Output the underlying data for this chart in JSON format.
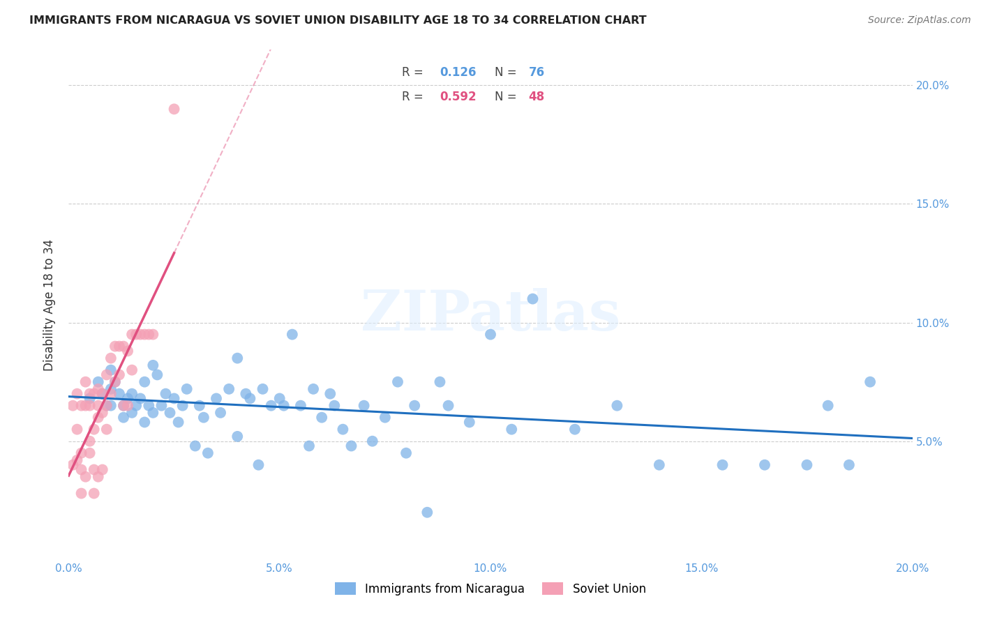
{
  "title": "IMMIGRANTS FROM NICARAGUA VS SOVIET UNION DISABILITY AGE 18 TO 34 CORRELATION CHART",
  "source": "Source: ZipAtlas.com",
  "ylabel": "Disability Age 18 to 34",
  "xlim": [
    0.0,
    0.2
  ],
  "ylim": [
    0.0,
    0.215
  ],
  "xticks": [
    0.0,
    0.05,
    0.1,
    0.15,
    0.2
  ],
  "yticks": [
    0.05,
    0.1,
    0.15,
    0.2
  ],
  "xtick_labels": [
    "0.0%",
    "5.0%",
    "10.0%",
    "15.0%",
    "20.0%"
  ],
  "ytick_labels": [
    "5.0%",
    "10.0%",
    "15.0%",
    "20.0%"
  ],
  "nicaragua_color": "#7FB3E8",
  "soviet_color": "#F4A0B5",
  "nicaragua_line_color": "#1F6FBF",
  "soviet_line_color": "#E05080",
  "watermark": "ZIPatlas",
  "nicaragua_R": "0.126",
  "nicaragua_N": "76",
  "soviet_R": "0.592",
  "soviet_N": "48",
  "nicaragua_x": [
    0.005,
    0.007,
    0.008,
    0.009,
    0.01,
    0.01,
    0.01,
    0.011,
    0.012,
    0.013,
    0.013,
    0.014,
    0.015,
    0.015,
    0.016,
    0.017,
    0.018,
    0.018,
    0.019,
    0.02,
    0.02,
    0.021,
    0.022,
    0.023,
    0.024,
    0.025,
    0.026,
    0.027,
    0.028,
    0.03,
    0.031,
    0.032,
    0.033,
    0.035,
    0.036,
    0.038,
    0.04,
    0.04,
    0.042,
    0.043,
    0.045,
    0.046,
    0.048,
    0.05,
    0.051,
    0.053,
    0.055,
    0.057,
    0.058,
    0.06,
    0.062,
    0.063,
    0.065,
    0.067,
    0.07,
    0.072,
    0.075,
    0.078,
    0.08,
    0.082,
    0.085,
    0.088,
    0.09,
    0.095,
    0.1,
    0.105,
    0.11,
    0.12,
    0.13,
    0.14,
    0.155,
    0.165,
    0.175,
    0.18,
    0.185,
    0.19
  ],
  "nicaragua_y": [
    0.068,
    0.075,
    0.07,
    0.065,
    0.08,
    0.072,
    0.065,
    0.075,
    0.07,
    0.065,
    0.06,
    0.068,
    0.062,
    0.07,
    0.065,
    0.068,
    0.058,
    0.075,
    0.065,
    0.082,
    0.062,
    0.078,
    0.065,
    0.07,
    0.062,
    0.068,
    0.058,
    0.065,
    0.072,
    0.048,
    0.065,
    0.06,
    0.045,
    0.068,
    0.062,
    0.072,
    0.052,
    0.085,
    0.07,
    0.068,
    0.04,
    0.072,
    0.065,
    0.068,
    0.065,
    0.095,
    0.065,
    0.048,
    0.072,
    0.06,
    0.07,
    0.065,
    0.055,
    0.048,
    0.065,
    0.05,
    0.06,
    0.075,
    0.045,
    0.065,
    0.02,
    0.075,
    0.065,
    0.058,
    0.095,
    0.055,
    0.11,
    0.055,
    0.065,
    0.04,
    0.04,
    0.04,
    0.04,
    0.065,
    0.04,
    0.075
  ],
  "soviet_x": [
    0.001,
    0.001,
    0.002,
    0.002,
    0.002,
    0.003,
    0.003,
    0.003,
    0.003,
    0.004,
    0.004,
    0.004,
    0.005,
    0.005,
    0.005,
    0.005,
    0.006,
    0.006,
    0.006,
    0.006,
    0.007,
    0.007,
    0.007,
    0.007,
    0.008,
    0.008,
    0.008,
    0.009,
    0.009,
    0.009,
    0.01,
    0.01,
    0.011,
    0.011,
    0.012,
    0.012,
    0.013,
    0.013,
    0.014,
    0.014,
    0.015,
    0.015,
    0.016,
    0.017,
    0.018,
    0.019,
    0.02,
    0.025
  ],
  "soviet_y": [
    0.065,
    0.04,
    0.055,
    0.07,
    0.042,
    0.065,
    0.045,
    0.028,
    0.038,
    0.075,
    0.065,
    0.035,
    0.065,
    0.05,
    0.07,
    0.045,
    0.07,
    0.055,
    0.028,
    0.038,
    0.072,
    0.065,
    0.06,
    0.035,
    0.07,
    0.062,
    0.038,
    0.078,
    0.065,
    0.055,
    0.085,
    0.07,
    0.09,
    0.075,
    0.09,
    0.078,
    0.09,
    0.065,
    0.088,
    0.065,
    0.095,
    0.08,
    0.095,
    0.095,
    0.095,
    0.095,
    0.095,
    0.19
  ]
}
